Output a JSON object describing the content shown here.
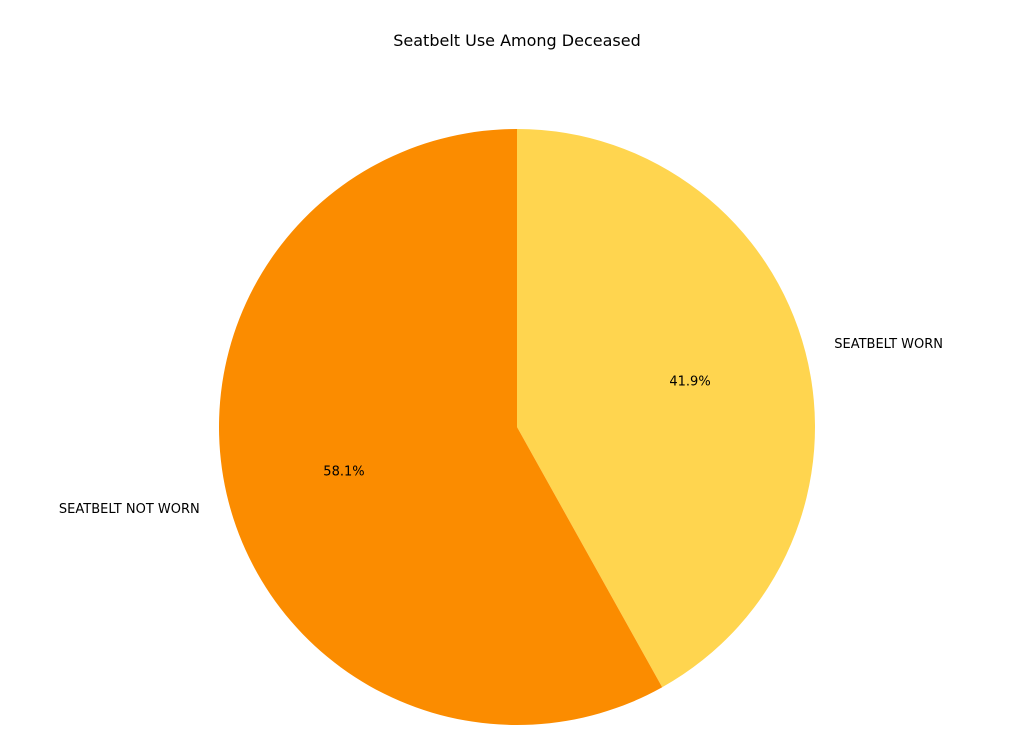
{
  "chart_data": {
    "type": "pie",
    "title": "Seatbelt Use Among Deceased",
    "slices": [
      {
        "label": "SEATBELT WORN",
        "value": 41.9,
        "pct_label": "41.9%",
        "color": "#FFD54F"
      },
      {
        "label": "SEATBELT NOT WORN",
        "value": 58.1,
        "pct_label": "58.1%",
        "color": "#FB8C00"
      }
    ],
    "start_angle_deg": 90,
    "direction": "clockwise"
  }
}
